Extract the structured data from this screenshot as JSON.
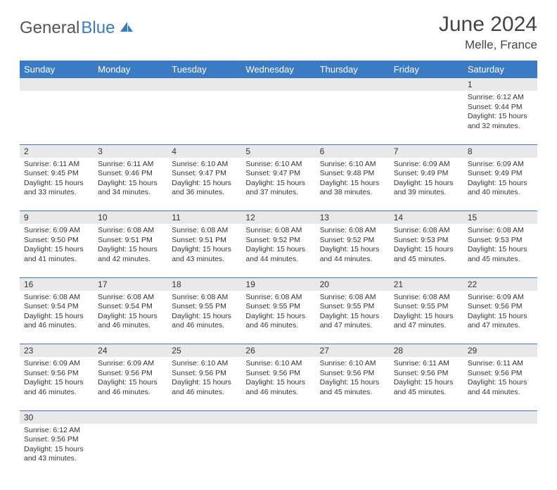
{
  "logo": {
    "text1": "General",
    "text2": "Blue"
  },
  "title": "June 2024",
  "location": "Melle, France",
  "colors": {
    "header_bg": "#3b7bc4",
    "header_text": "#ffffff",
    "daynum_bg": "#e8e8e8",
    "border": "#3b7bc4",
    "text": "#333333",
    "logo_gray": "#555555",
    "logo_blue": "#3b7bc4",
    "page_bg": "#ffffff"
  },
  "weekdays": [
    "Sunday",
    "Monday",
    "Tuesday",
    "Wednesday",
    "Thursday",
    "Friday",
    "Saturday"
  ],
  "weeks": [
    [
      null,
      null,
      null,
      null,
      null,
      null,
      {
        "n": "1",
        "sr": "Sunrise: 6:12 AM",
        "ss": "Sunset: 9:44 PM",
        "dl": "Daylight: 15 hours and 32 minutes."
      }
    ],
    [
      {
        "n": "2",
        "sr": "Sunrise: 6:11 AM",
        "ss": "Sunset: 9:45 PM",
        "dl": "Daylight: 15 hours and 33 minutes."
      },
      {
        "n": "3",
        "sr": "Sunrise: 6:11 AM",
        "ss": "Sunset: 9:46 PM",
        "dl": "Daylight: 15 hours and 34 minutes."
      },
      {
        "n": "4",
        "sr": "Sunrise: 6:10 AM",
        "ss": "Sunset: 9:47 PM",
        "dl": "Daylight: 15 hours and 36 minutes."
      },
      {
        "n": "5",
        "sr": "Sunrise: 6:10 AM",
        "ss": "Sunset: 9:47 PM",
        "dl": "Daylight: 15 hours and 37 minutes."
      },
      {
        "n": "6",
        "sr": "Sunrise: 6:10 AM",
        "ss": "Sunset: 9:48 PM",
        "dl": "Daylight: 15 hours and 38 minutes."
      },
      {
        "n": "7",
        "sr": "Sunrise: 6:09 AM",
        "ss": "Sunset: 9:49 PM",
        "dl": "Daylight: 15 hours and 39 minutes."
      },
      {
        "n": "8",
        "sr": "Sunrise: 6:09 AM",
        "ss": "Sunset: 9:49 PM",
        "dl": "Daylight: 15 hours and 40 minutes."
      }
    ],
    [
      {
        "n": "9",
        "sr": "Sunrise: 6:09 AM",
        "ss": "Sunset: 9:50 PM",
        "dl": "Daylight: 15 hours and 41 minutes."
      },
      {
        "n": "10",
        "sr": "Sunrise: 6:08 AM",
        "ss": "Sunset: 9:51 PM",
        "dl": "Daylight: 15 hours and 42 minutes."
      },
      {
        "n": "11",
        "sr": "Sunrise: 6:08 AM",
        "ss": "Sunset: 9:51 PM",
        "dl": "Daylight: 15 hours and 43 minutes."
      },
      {
        "n": "12",
        "sr": "Sunrise: 6:08 AM",
        "ss": "Sunset: 9:52 PM",
        "dl": "Daylight: 15 hours and 44 minutes."
      },
      {
        "n": "13",
        "sr": "Sunrise: 6:08 AM",
        "ss": "Sunset: 9:52 PM",
        "dl": "Daylight: 15 hours and 44 minutes."
      },
      {
        "n": "14",
        "sr": "Sunrise: 6:08 AM",
        "ss": "Sunset: 9:53 PM",
        "dl": "Daylight: 15 hours and 45 minutes."
      },
      {
        "n": "15",
        "sr": "Sunrise: 6:08 AM",
        "ss": "Sunset: 9:53 PM",
        "dl": "Daylight: 15 hours and 45 minutes."
      }
    ],
    [
      {
        "n": "16",
        "sr": "Sunrise: 6:08 AM",
        "ss": "Sunset: 9:54 PM",
        "dl": "Daylight: 15 hours and 46 minutes."
      },
      {
        "n": "17",
        "sr": "Sunrise: 6:08 AM",
        "ss": "Sunset: 9:54 PM",
        "dl": "Daylight: 15 hours and 46 minutes."
      },
      {
        "n": "18",
        "sr": "Sunrise: 6:08 AM",
        "ss": "Sunset: 9:55 PM",
        "dl": "Daylight: 15 hours and 46 minutes."
      },
      {
        "n": "19",
        "sr": "Sunrise: 6:08 AM",
        "ss": "Sunset: 9:55 PM",
        "dl": "Daylight: 15 hours and 46 minutes."
      },
      {
        "n": "20",
        "sr": "Sunrise: 6:08 AM",
        "ss": "Sunset: 9:55 PM",
        "dl": "Daylight: 15 hours and 47 minutes."
      },
      {
        "n": "21",
        "sr": "Sunrise: 6:08 AM",
        "ss": "Sunset: 9:55 PM",
        "dl": "Daylight: 15 hours and 47 minutes."
      },
      {
        "n": "22",
        "sr": "Sunrise: 6:09 AM",
        "ss": "Sunset: 9:56 PM",
        "dl": "Daylight: 15 hours and 47 minutes."
      }
    ],
    [
      {
        "n": "23",
        "sr": "Sunrise: 6:09 AM",
        "ss": "Sunset: 9:56 PM",
        "dl": "Daylight: 15 hours and 46 minutes."
      },
      {
        "n": "24",
        "sr": "Sunrise: 6:09 AM",
        "ss": "Sunset: 9:56 PM",
        "dl": "Daylight: 15 hours and 46 minutes."
      },
      {
        "n": "25",
        "sr": "Sunrise: 6:10 AM",
        "ss": "Sunset: 9:56 PM",
        "dl": "Daylight: 15 hours and 46 minutes."
      },
      {
        "n": "26",
        "sr": "Sunrise: 6:10 AM",
        "ss": "Sunset: 9:56 PM",
        "dl": "Daylight: 15 hours and 46 minutes."
      },
      {
        "n": "27",
        "sr": "Sunrise: 6:10 AM",
        "ss": "Sunset: 9:56 PM",
        "dl": "Daylight: 15 hours and 45 minutes."
      },
      {
        "n": "28",
        "sr": "Sunrise: 6:11 AM",
        "ss": "Sunset: 9:56 PM",
        "dl": "Daylight: 15 hours and 45 minutes."
      },
      {
        "n": "29",
        "sr": "Sunrise: 6:11 AM",
        "ss": "Sunset: 9:56 PM",
        "dl": "Daylight: 15 hours and 44 minutes."
      }
    ],
    [
      {
        "n": "30",
        "sr": "Sunrise: 6:12 AM",
        "ss": "Sunset: 9:56 PM",
        "dl": "Daylight: 15 hours and 43 minutes."
      },
      null,
      null,
      null,
      null,
      null,
      null
    ]
  ]
}
